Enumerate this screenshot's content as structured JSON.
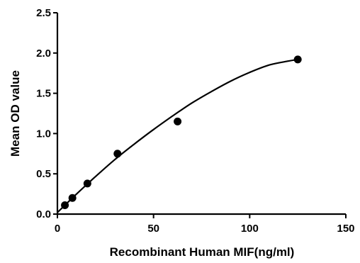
{
  "chart_data": {
    "type": "scatter",
    "title": "",
    "xlabel": "Recombinant Human MIF(ng/ml)",
    "ylabel": "Mean OD value",
    "xlim": [
      0,
      150
    ],
    "ylim": [
      0,
      2.5
    ],
    "x_ticks": [
      "0",
      "50",
      "100",
      "150"
    ],
    "y_ticks": [
      "0.0",
      "0.5",
      "1.0",
      "1.5",
      "2.0",
      "2.5"
    ],
    "grid": false,
    "legend": "none",
    "marker_color": "#000000",
    "series": [
      {
        "x": [
          3.9,
          7.8,
          15.6,
          31.25,
          62.5,
          125
        ],
        "y": [
          0.11,
          0.2,
          0.38,
          0.75,
          1.15,
          1.92
        ]
      }
    ],
    "fit_curve": {
      "style": "smooth",
      "x": [
        0,
        10,
        20,
        30,
        40,
        50,
        60,
        70,
        80,
        90,
        100,
        110,
        120,
        125
      ],
      "y": [
        0.02,
        0.25,
        0.47,
        0.68,
        0.87,
        1.05,
        1.22,
        1.38,
        1.52,
        1.65,
        1.76,
        1.85,
        1.9,
        1.92
      ]
    }
  }
}
